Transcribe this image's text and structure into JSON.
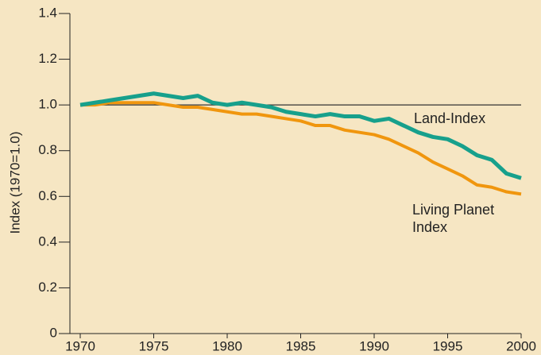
{
  "chart_data": {
    "type": "line",
    "y_label": "Index (1970=1.0)",
    "x": [
      1970,
      1971,
      1972,
      1973,
      1974,
      1975,
      1976,
      1977,
      1978,
      1979,
      1980,
      1981,
      1982,
      1983,
      1984,
      1985,
      1986,
      1987,
      1988,
      1989,
      1990,
      1991,
      1992,
      1993,
      1994,
      1995,
      1996,
      1997,
      1998,
      1999,
      2000
    ],
    "series": [
      {
        "name": "Land-Index",
        "color": "#17a08c",
        "values": [
          1.0,
          1.01,
          1.02,
          1.03,
          1.04,
          1.05,
          1.04,
          1.03,
          1.04,
          1.01,
          1.0,
          1.01,
          1.0,
          0.99,
          0.97,
          0.96,
          0.95,
          0.96,
          0.95,
          0.95,
          0.93,
          0.94,
          0.91,
          0.88,
          0.86,
          0.85,
          0.82,
          0.78,
          0.76,
          0.7,
          0.68
        ]
      },
      {
        "name": "Living Planet Index",
        "color": "#f0960e",
        "values": [
          1.0,
          1.0,
          1.01,
          1.01,
          1.01,
          1.01,
          1.0,
          0.99,
          0.99,
          0.98,
          0.97,
          0.96,
          0.96,
          0.95,
          0.94,
          0.93,
          0.91,
          0.91,
          0.89,
          0.88,
          0.87,
          0.85,
          0.82,
          0.79,
          0.75,
          0.72,
          0.69,
          0.65,
          0.64,
          0.62,
          0.61
        ]
      }
    ],
    "reference_line": 1,
    "xlim": [
      1970,
      2000
    ],
    "xticks": [
      1970,
      1975,
      1980,
      1985,
      1990,
      1995,
      2000
    ],
    "ylim": [
      0,
      1.4
    ],
    "yticks": [
      0,
      0.2,
      0.4,
      0.6,
      0.8,
      {
        "value": 1,
        "label": "1.0"
      },
      1.2,
      1.4
    ]
  }
}
